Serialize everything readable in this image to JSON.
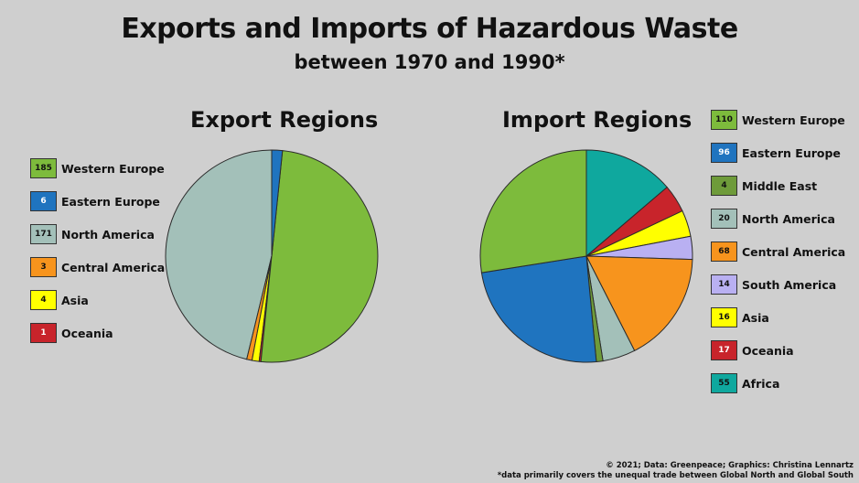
{
  "title": "Exports and Imports of Hazardous Waste",
  "subtitle": "between 1970 and 1990*",
  "chart_data": [
    {
      "type": "pie",
      "title": "Export Regions",
      "slices": [
        {
          "label": "Western Europe",
          "value": 185,
          "color": "#7dbb3c",
          "text_color": "#111"
        },
        {
          "label": "Eastern Europe",
          "value": 6,
          "color": "#1f74bf",
          "text_color": "#ffffff"
        },
        {
          "label": "North America",
          "value": 171,
          "color": "#a3c0b9",
          "text_color": "#111"
        },
        {
          "label": "Central America",
          "value": 3,
          "color": "#f7941d",
          "text_color": "#111"
        },
        {
          "label": "Asia",
          "value": 4,
          "color": "#ffff00",
          "text_color": "#111"
        },
        {
          "label": "Oceania",
          "value": 1,
          "color": "#c8242b",
          "text_color": "#ffffff"
        }
      ],
      "draw_order": [
        2,
        3,
        4,
        5,
        0,
        1
      ],
      "start_angle_deg": 0,
      "direction": "counterclockwise",
      "legend_position": "left"
    },
    {
      "type": "pie",
      "title": "Import Regions",
      "slices": [
        {
          "label": "Western Europe",
          "value": 110,
          "color": "#7dbb3c",
          "text_color": "#111"
        },
        {
          "label": "Eastern Europe",
          "value": 96,
          "color": "#1f74bf",
          "text_color": "#ffffff"
        },
        {
          "label": "Middle East",
          "value": 4,
          "color": "#6e9b3a",
          "text_color": "#111"
        },
        {
          "label": "North America",
          "value": 20,
          "color": "#a3c0b9",
          "text_color": "#111"
        },
        {
          "label": "Central America",
          "value": 68,
          "color": "#f7941d",
          "text_color": "#111"
        },
        {
          "label": "South America",
          "value": 14,
          "color": "#b9b0f2",
          "text_color": "#111"
        },
        {
          "label": "Asia",
          "value": 16,
          "color": "#ffff00",
          "text_color": "#111"
        },
        {
          "label": "Oceania",
          "value": 17,
          "color": "#c8242b",
          "text_color": "#ffffff"
        },
        {
          "label": "Africa",
          "value": 55,
          "color": "#0fa89e",
          "text_color": "#111"
        }
      ],
      "draw_order": [
        8,
        7,
        6,
        5,
        4,
        3,
        2,
        1,
        0
      ],
      "start_angle_deg": 0,
      "direction": "clockwise",
      "legend_position": "right"
    }
  ],
  "footer": {
    "credit": "© 2021; Data: Greenpeace; Graphics: Christina Lennartz",
    "note": "*data primarily covers the unequal trade between Global North and Global South"
  }
}
